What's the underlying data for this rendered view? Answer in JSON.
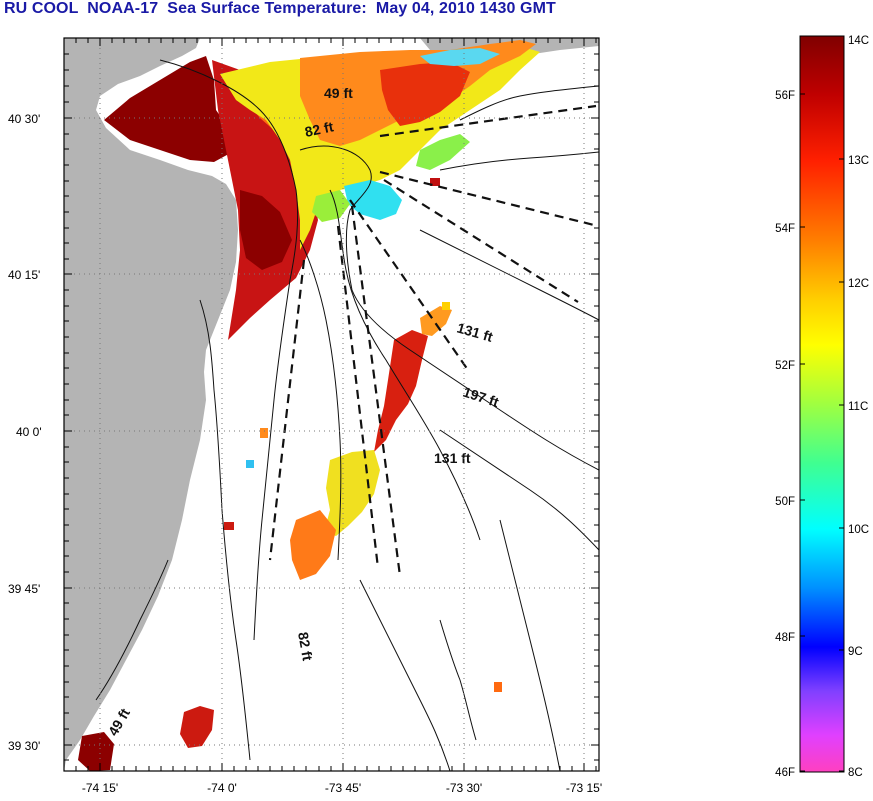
{
  "title": "RU COOL  NOAA-17  Sea Surface Temperature:  May 04, 2010 1430 GMT",
  "lat_ticks": [
    "40 30'",
    "40 15'",
    "40 0'",
    "39 45'",
    "39 30'"
  ],
  "lon_ticks": [
    "-74 15'",
    "-74 0'",
    "-73 45'",
    "-73 30'",
    "-73 15'"
  ],
  "depth_labels": [
    "49 ft",
    "82 ft",
    "131 ft",
    "197 ft",
    "131 ft",
    "82 ft",
    "49 ft"
  ],
  "colorbar": {
    "celsius": [
      "14C",
      "13C",
      "12C",
      "11C",
      "10C",
      "9C",
      "8C"
    ],
    "fahrenheit": [
      "56F",
      "54F",
      "52F",
      "50F",
      "48F",
      "46F"
    ]
  },
  "colors": {
    "title": "#1a1aa6",
    "land": "#b4b4b4"
  }
}
